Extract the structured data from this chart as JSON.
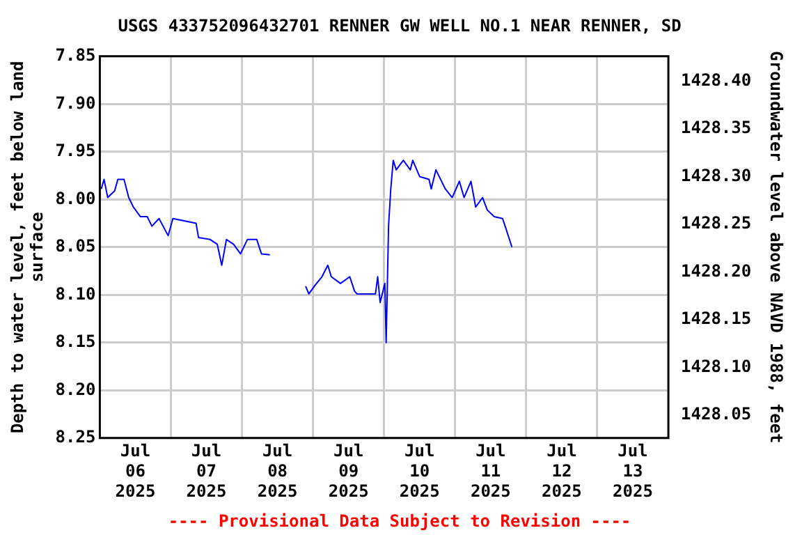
{
  "chart_data": {
    "type": "line",
    "title": "USGS 433752096432701 RENNER GW WELL NO.1 NEAR RENNER, SD",
    "ylabel": "Depth to water level, feet below land surface",
    "y2label": "Groundwater level above NAVD 1988, feet",
    "annotations": [
      "---- Provisional Data Subject to Revision ----"
    ],
    "x": [
      "2025-07-06T00:30",
      "2025-07-06T01:25",
      "2025-07-06T02:40",
      "2025-07-06T05:00",
      "2025-07-06T06:05",
      "2025-07-06T08:10",
      "2025-07-06T09:45",
      "2025-07-06T11:20",
      "2025-07-06T13:40",
      "2025-07-06T16:00",
      "2025-07-06T17:35",
      "2025-07-06T20:00",
      "2025-07-06T23:05",
      "2025-07-07T00:40",
      "2025-07-07T08:30",
      "2025-07-07T09:20",
      "2025-07-07T13:15",
      "2025-07-07T15:40",
      "2025-07-07T17:10",
      "2025-07-07T18:45",
      "2025-07-07T21:10",
      "2025-07-07T23:30",
      "2025-07-08T01:50",
      "2025-07-08T05:00",
      "2025-07-08T06:35",
      "2025-07-08T09:25",
      "2025-07-08T15:00",
      "2025-07-08T21:30",
      "2025-07-08T22:35",
      "2025-07-09T00:40",
      "2025-07-09T03:00",
      "2025-07-09T05:00",
      "2025-07-09T06:10",
      "2025-07-09T09:15",
      "2025-07-09T12:25",
      "2025-07-09T14:00",
      "2025-07-09T14:50",
      "2025-07-09T21:05",
      "2025-07-09T21:50",
      "2025-07-09T22:40",
      "2025-07-10T00:15",
      "2025-07-10T00:42",
      "2025-07-10T01:30",
      "2025-07-10T02:15",
      "2025-07-10T03:05",
      "2025-07-10T04:05",
      "2025-07-10T06:30",
      "2025-07-10T08:50",
      "2025-07-10T09:40",
      "2025-07-10T12:00",
      "2025-07-10T15:10",
      "2025-07-10T15:55",
      "2025-07-10T17:30",
      "2025-07-10T20:40",
      "2025-07-10T23:00",
      "2025-07-11T01:25",
      "2025-07-11T03:00",
      "2025-07-11T05:20",
      "2025-07-11T06:55",
      "2025-07-11T09:15",
      "2025-07-11T10:50",
      "2025-07-11T13:10",
      "2025-07-11T16:00",
      "2025-07-11T17:05",
      "2025-07-11T19:10"
    ],
    "series": [
      {
        "color": "#0000ff",
        "values": [
          7.989,
          7.979,
          7.998,
          7.991,
          7.979,
          7.979,
          7.998,
          8.008,
          8.018,
          8.018,
          8.028,
          8.02,
          8.038,
          8.02,
          8.025,
          8.04,
          8.042,
          8.047,
          8.069,
          8.042,
          8.047,
          8.057,
          8.042,
          8.042,
          8.057,
          8.058,
          null,
          8.091,
          8.099,
          8.09,
          8.081,
          8.069,
          8.081,
          8.088,
          8.081,
          8.096,
          8.099,
          8.099,
          8.081,
          8.108,
          8.088,
          8.15,
          8.028,
          7.989,
          7.959,
          7.969,
          7.959,
          7.969,
          7.959,
          7.976,
          7.979,
          7.989,
          7.969,
          7.989,
          7.998,
          7.981,
          7.998,
          7.981,
          8.008,
          7.998,
          8.011,
          8.018,
          8.02,
          8.03,
          8.05
        ]
      }
    ],
    "xlim": [
      "2025-07-06T00:00",
      "2025-07-14T00:00"
    ],
    "xticks": [
      {
        "value": "2025-07-06T12:00",
        "label": "Jul 06 2025"
      },
      {
        "value": "2025-07-07T00:00",
        "label": null
      },
      {
        "value": "2025-07-07T12:00",
        "label": "Jul 07 2025"
      },
      {
        "value": "2025-07-08T00:00",
        "label": null
      },
      {
        "value": "2025-07-08T12:00",
        "label": "Jul 08 2025"
      },
      {
        "value": "2025-07-09T00:00",
        "label": null
      },
      {
        "value": "2025-07-09T12:00",
        "label": "Jul 09 2025"
      },
      {
        "value": "2025-07-10T00:00",
        "label": null
      },
      {
        "value": "2025-07-10T12:00",
        "label": "Jul 10 2025"
      },
      {
        "value": "2025-07-11T00:00",
        "label": null
      },
      {
        "value": "2025-07-11T12:00",
        "label": "Jul 11 2025"
      },
      {
        "value": "2025-07-12T00:00",
        "label": null
      },
      {
        "value": "2025-07-12T12:00",
        "label": "Jul 12 2025"
      },
      {
        "value": "2025-07-13T00:00",
        "label": null
      },
      {
        "value": "2025-07-13T12:00",
        "label": "Jul 13 2025"
      }
    ],
    "ylim": [
      8.25,
      7.85
    ],
    "yticks": [
      7.85,
      {
        "value": 7.9,
        "label": "7.90"
      },
      7.95,
      {
        "value": 8,
        "label": "8.00"
      },
      8.05,
      {
        "value": 8.1,
        "label": "8.10"
      },
      8.15,
      {
        "value": 8.2,
        "label": "8.20"
      },
      8.25
    ],
    "y2lim": [
      1428.026,
      1428.426
    ],
    "y2ticks": [
      1428.05,
      {
        "value": 1428.1,
        "label": "1428.10"
      },
      1428.15,
      {
        "value": 1428.2,
        "label": "1428.20"
      },
      1428.25,
      {
        "value": 1428.3,
        "label": "1428.30"
      },
      1428.35,
      {
        "value": 1428.4,
        "label": "1428.40"
      }
    ],
    "grid": true,
    "marker": "none"
  }
}
